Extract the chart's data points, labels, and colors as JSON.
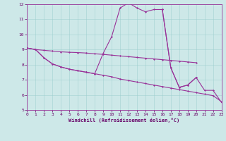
{
  "xlabel": "Windchill (Refroidissement éolien,°C)",
  "xlim": [
    0,
    23
  ],
  "ylim": [
    5,
    12
  ],
  "xticks": [
    0,
    1,
    2,
    3,
    4,
    5,
    6,
    7,
    8,
    9,
    10,
    11,
    12,
    13,
    14,
    15,
    16,
    17,
    18,
    19,
    20,
    21,
    22,
    23
  ],
  "yticks": [
    5,
    6,
    7,
    8,
    9,
    10,
    11,
    12
  ],
  "bg_color": "#cde8e8",
  "line_color": "#993399",
  "curves": [
    {
      "x": [
        0,
        1,
        2,
        3,
        4,
        5,
        6,
        7,
        8,
        9,
        10,
        11,
        12,
        13,
        14,
        15,
        16,
        17,
        18,
        19,
        20,
        21,
        22,
        23
      ],
      "y": [
        9.1,
        9.0,
        8.45,
        8.05,
        7.85,
        7.7,
        7.6,
        7.5,
        7.4,
        7.3,
        7.2,
        7.05,
        6.95,
        6.85,
        6.75,
        6.65,
        6.55,
        6.45,
        6.35,
        6.25,
        6.15,
        6.05,
        5.95,
        5.55
      ]
    },
    {
      "x": [
        0,
        1,
        2,
        3,
        4,
        5,
        6,
        7,
        8,
        9,
        10,
        11,
        12,
        13,
        14,
        15,
        16,
        17,
        18,
        19,
        20
      ],
      "y": [
        9.1,
        9.0,
        8.45,
        8.05,
        7.85,
        7.7,
        7.6,
        7.5,
        7.4,
        8.75,
        9.85,
        11.75,
        12.1,
        11.75,
        11.5,
        11.65,
        11.65,
        7.8,
        6.5,
        6.65,
        7.15
      ]
    },
    {
      "x": [
        0,
        1,
        2,
        3,
        4,
        5,
        6,
        7,
        8,
        9,
        10,
        11,
        12,
        13,
        14,
        15,
        16,
        17,
        18,
        19,
        20
      ],
      "y": [
        9.1,
        9.0,
        8.95,
        8.9,
        8.85,
        8.82,
        8.8,
        8.77,
        8.72,
        8.68,
        8.63,
        8.58,
        8.53,
        8.48,
        8.43,
        8.38,
        8.33,
        8.28,
        8.23,
        8.18,
        8.13
      ]
    },
    {
      "x": [
        16,
        17,
        18,
        19,
        20,
        21,
        22,
        23
      ],
      "y": [
        11.65,
        7.8,
        6.5,
        6.65,
        7.15,
        6.3,
        6.3,
        5.5
      ]
    }
  ]
}
